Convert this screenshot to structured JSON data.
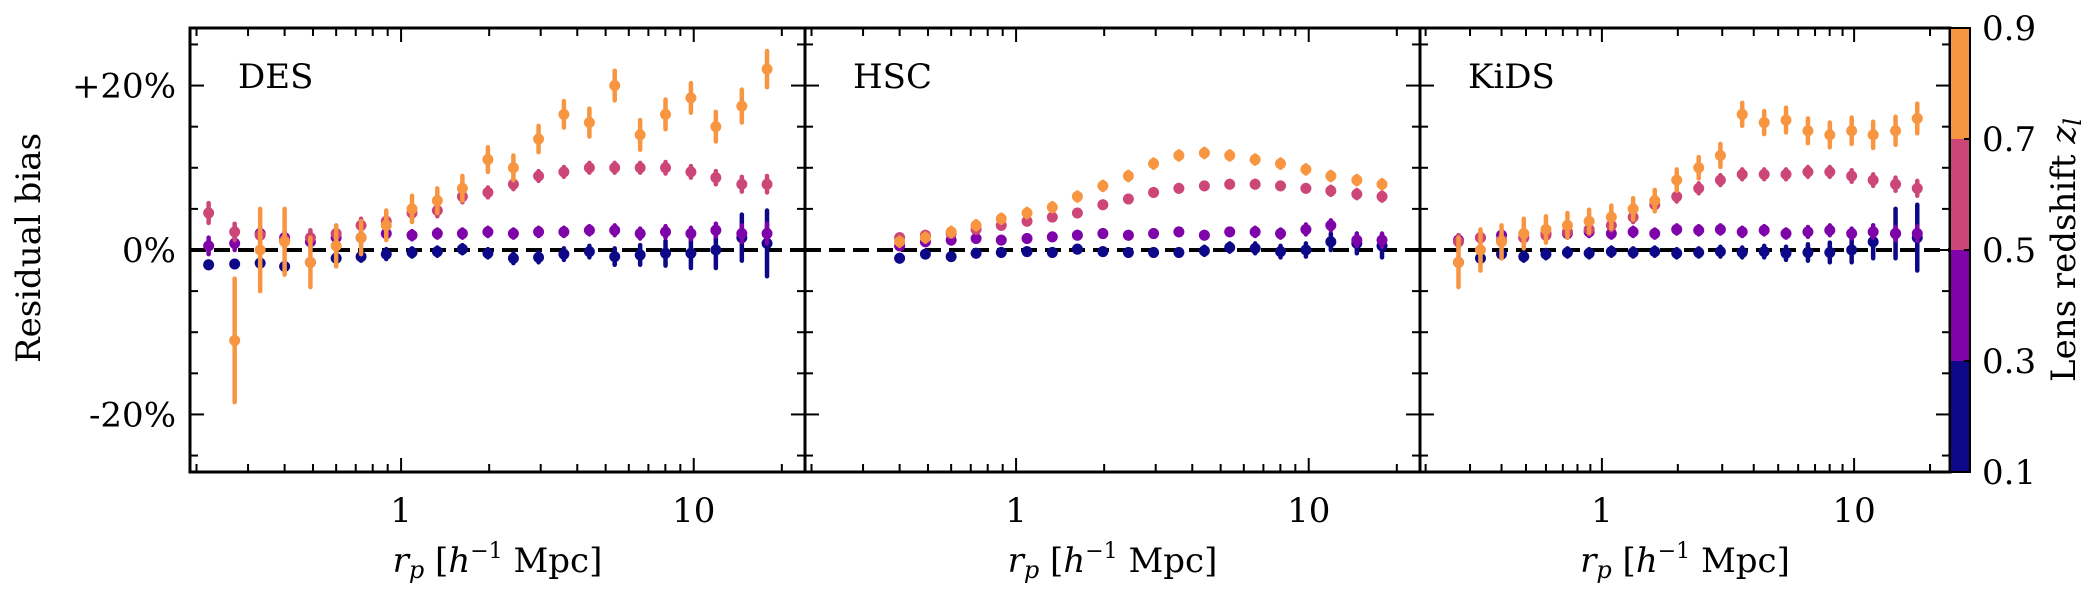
{
  "chart_data": {
    "type": "scatter",
    "ylabel": "Residual bias",
    "xlabel": "r_p [h^{-1} Mpc]",
    "x_scale": "log",
    "xlim": [
      0.19,
      24
    ],
    "ylim": [
      -0.27,
      0.27
    ],
    "x_ticks": [
      {
        "value": 1,
        "label": "1"
      },
      {
        "value": 10,
        "label": "10"
      }
    ],
    "y_ticks": [
      {
        "value": 0.2,
        "label": "+20%"
      },
      {
        "value": 0,
        "label": "0%"
      },
      {
        "value": -0.2,
        "label": "-20%"
      }
    ],
    "reference_line": 0,
    "colorbar": {
      "label": "Lens redshift z_l",
      "label_text": "Lens redshift ",
      "label_symbol": "z",
      "label_subscript": "l",
      "ticks": [
        "0.1",
        "0.3",
        "0.5",
        "0.7",
        "0.9"
      ],
      "bins": [
        {
          "range": [
            0.1,
            0.3
          ],
          "color": "#0d0887"
        },
        {
          "range": [
            0.3,
            0.5
          ],
          "color": "#7e03a8"
        },
        {
          "range": [
            0.5,
            0.7
          ],
          "color": "#cc4778"
        },
        {
          "range": [
            0.7,
            0.9
          ],
          "color": "#f89540"
        }
      ]
    },
    "x": [
      0.22,
      0.27,
      0.33,
      0.4,
      0.49,
      0.6,
      0.73,
      0.89,
      1.09,
      1.33,
      1.62,
      1.98,
      2.42,
      2.95,
      3.6,
      4.4,
      5.37,
      6.56,
      8.01,
      9.78,
      11.9,
      14.6,
      17.8
    ],
    "panels": [
      {
        "title": "DES",
        "series": [
          {
            "bin": 0,
            "x_index": [
              0,
              1,
              2,
              3,
              4,
              5,
              6,
              7,
              8,
              9,
              10,
              11,
              12,
              13,
              14,
              15,
              16,
              17,
              18,
              19,
              20,
              21,
              22
            ],
            "y": [
              -0.018,
              -0.017,
              -0.016,
              -0.02,
              -0.015,
              -0.01,
              -0.008,
              -0.005,
              -0.003,
              -0.002,
              0.001,
              -0.004,
              -0.01,
              -0.009,
              -0.005,
              -0.002,
              -0.008,
              -0.006,
              -0.004,
              -0.004,
              0.0,
              0.015,
              0.008
            ],
            "err": [
              0.004,
              0.004,
              0.004,
              0.005,
              0.005,
              0.005,
              0.005,
              0.006,
              0.005,
              0.005,
              0.005,
              0.005,
              0.006,
              0.006,
              0.007,
              0.007,
              0.01,
              0.012,
              0.015,
              0.018,
              0.022,
              0.028,
              0.04
            ]
          },
          {
            "bin": 1,
            "x_index": [
              0,
              1,
              2,
              3,
              4,
              5,
              6,
              7,
              8,
              9,
              10,
              11,
              12,
              13,
              14,
              15,
              16,
              17,
              18,
              19,
              20,
              21,
              22
            ],
            "y": [
              0.005,
              0.008,
              0.02,
              0.015,
              0.01,
              0.015,
              0.015,
              0.02,
              0.018,
              0.02,
              0.02,
              0.022,
              0.02,
              0.022,
              0.022,
              0.024,
              0.024,
              0.02,
              0.022,
              0.02,
              0.024,
              0.02,
              0.02
            ],
            "err": [
              0.01,
              0.008,
              0.008,
              0.008,
              0.007,
              0.006,
              0.006,
              0.006,
              0.005,
              0.005,
              0.005,
              0.005,
              0.005,
              0.005,
              0.005,
              0.005,
              0.006,
              0.006,
              0.007,
              0.007,
              0.008,
              0.01,
              0.012
            ]
          },
          {
            "bin": 2,
            "x_index": [
              0,
              1,
              2,
              3,
              4,
              5,
              6,
              7,
              8,
              9,
              10,
              11,
              12,
              13,
              14,
              15,
              16,
              17,
              18,
              19,
              20,
              21,
              22
            ],
            "y": [
              0.045,
              0.022,
              0.018,
              0.012,
              0.015,
              0.02,
              0.03,
              0.035,
              0.045,
              0.048,
              0.065,
              0.07,
              0.08,
              0.09,
              0.095,
              0.1,
              0.1,
              0.1,
              0.1,
              0.095,
              0.088,
              0.08,
              0.08
            ],
            "err": [
              0.012,
              0.01,
              0.01,
              0.009,
              0.009,
              0.008,
              0.008,
              0.008,
              0.007,
              0.007,
              0.007,
              0.006,
              0.006,
              0.006,
              0.006,
              0.006,
              0.006,
              0.006,
              0.007,
              0.007,
              0.008,
              0.009,
              0.01
            ]
          },
          {
            "bin": 3,
            "x_index": [
              1,
              2,
              3,
              4,
              5,
              6,
              7,
              8,
              9,
              10,
              11,
              12,
              13,
              14,
              15,
              16,
              17,
              18,
              19,
              20,
              21,
              22
            ],
            "y": [
              -0.11,
              0.0,
              0.01,
              -0.015,
              0.005,
              0.015,
              0.03,
              0.05,
              0.06,
              0.075,
              0.11,
              0.1,
              0.135,
              0.165,
              0.155,
              0.2,
              0.14,
              0.165,
              0.185,
              0.15,
              0.175,
              0.22
            ],
            "err": [
              0.075,
              0.05,
              0.04,
              0.03,
              0.025,
              0.02,
              0.018,
              0.016,
              0.015,
              0.015,
              0.015,
              0.015,
              0.016,
              0.016,
              0.017,
              0.018,
              0.018,
              0.018,
              0.018,
              0.018,
              0.02,
              0.022
            ]
          }
        ]
      },
      {
        "title": "HSC",
        "series": [
          {
            "bin": 0,
            "x_index": [
              3,
              4,
              5,
              6,
              7,
              8,
              9,
              10,
              11,
              12,
              13,
              14,
              15,
              16,
              17,
              18,
              19,
              20,
              21,
              22
            ],
            "y": [
              -0.01,
              -0.005,
              -0.008,
              -0.004,
              -0.003,
              -0.002,
              -0.003,
              0.001,
              -0.002,
              -0.003,
              -0.003,
              -0.003,
              -0.001,
              0.003,
              0.002,
              -0.002,
              0.0,
              0.01,
              0.008,
              0.005
            ],
            "err": [
              0.004,
              0.004,
              0.004,
              0.004,
              0.004,
              0.004,
              0.004,
              0.004,
              0.004,
              0.004,
              0.004,
              0.004,
              0.005,
              0.005,
              0.006,
              0.007,
              0.008,
              0.01,
              0.012,
              0.014
            ]
          },
          {
            "bin": 1,
            "x_index": [
              3,
              4,
              5,
              6,
              7,
              8,
              9,
              10,
              11,
              12,
              13,
              14,
              15,
              16,
              17,
              18,
              19,
              20,
              21,
              22
            ],
            "y": [
              0.005,
              0.01,
              0.012,
              0.014,
              0.012,
              0.014,
              0.016,
              0.018,
              0.02,
              0.018,
              0.02,
              0.022,
              0.018,
              0.022,
              0.022,
              0.02,
              0.025,
              0.03,
              0.012,
              0.012
            ],
            "err": [
              0.004,
              0.004,
              0.004,
              0.004,
              0.004,
              0.004,
              0.004,
              0.004,
              0.004,
              0.004,
              0.004,
              0.004,
              0.004,
              0.004,
              0.005,
              0.005,
              0.006,
              0.006,
              0.007,
              0.008
            ]
          },
          {
            "bin": 2,
            "x_index": [
              3,
              4,
              5,
              6,
              7,
              8,
              9,
              10,
              11,
              12,
              13,
              14,
              15,
              16,
              17,
              18,
              19,
              20,
              21,
              22
            ],
            "y": [
              0.015,
              0.018,
              0.02,
              0.025,
              0.03,
              0.035,
              0.04,
              0.045,
              0.055,
              0.062,
              0.07,
              0.075,
              0.078,
              0.08,
              0.08,
              0.078,
              0.075,
              0.072,
              0.068,
              0.065
            ],
            "err": [
              0.004,
              0.004,
              0.004,
              0.004,
              0.004,
              0.004,
              0.004,
              0.004,
              0.004,
              0.004,
              0.004,
              0.004,
              0.004,
              0.004,
              0.004,
              0.004,
              0.004,
              0.005,
              0.005,
              0.005
            ]
          },
          {
            "bin": 3,
            "x_index": [
              3,
              4,
              5,
              6,
              7,
              8,
              9,
              10,
              11,
              12,
              13,
              14,
              15,
              16,
              17,
              18,
              19,
              20,
              21,
              22
            ],
            "y": [
              0.01,
              0.015,
              0.022,
              0.03,
              0.038,
              0.045,
              0.052,
              0.065,
              0.078,
              0.09,
              0.105,
              0.115,
              0.118,
              0.115,
              0.11,
              0.105,
              0.098,
              0.09,
              0.085,
              0.08
            ],
            "err": [
              0.005,
              0.005,
              0.005,
              0.005,
              0.005,
              0.005,
              0.005,
              0.005,
              0.005,
              0.005,
              0.005,
              0.005,
              0.005,
              0.005,
              0.005,
              0.005,
              0.005,
              0.005,
              0.005,
              0.005
            ]
          }
        ]
      },
      {
        "title": "KiDS",
        "series": [
          {
            "bin": 0,
            "x_index": [
              1,
              2,
              3,
              4,
              5,
              6,
              7,
              8,
              9,
              10,
              11,
              12,
              13,
              14,
              15,
              16,
              17,
              18,
              19,
              20,
              21,
              22
            ],
            "y": [
              -0.015,
              -0.01,
              -0.005,
              -0.008,
              -0.005,
              -0.003,
              -0.004,
              -0.002,
              -0.003,
              -0.002,
              -0.004,
              -0.003,
              -0.002,
              -0.003,
              -0.002,
              -0.004,
              -0.003,
              -0.003,
              0.0,
              0.01,
              0.02,
              0.015
            ],
            "err": [
              0.005,
              0.005,
              0.005,
              0.005,
              0.005,
              0.005,
              0.005,
              0.005,
              0.005,
              0.005,
              0.005,
              0.005,
              0.006,
              0.006,
              0.007,
              0.008,
              0.01,
              0.012,
              0.015,
              0.02,
              0.03,
              0.04
            ]
          },
          {
            "bin": 1,
            "x_index": [
              1,
              2,
              3,
              4,
              5,
              6,
              7,
              8,
              9,
              10,
              11,
              12,
              13,
              14,
              15,
              16,
              17,
              18,
              19,
              20,
              21,
              22
            ],
            "y": [
              0.012,
              0.015,
              0.018,
              0.015,
              0.02,
              0.02,
              0.022,
              0.02,
              0.022,
              0.02,
              0.025,
              0.024,
              0.025,
              0.022,
              0.024,
              0.02,
              0.022,
              0.024,
              0.02,
              0.022,
              0.02,
              0.02
            ],
            "err": [
              0.006,
              0.006,
              0.006,
              0.005,
              0.005,
              0.005,
              0.005,
              0.005,
              0.005,
              0.005,
              0.005,
              0.005,
              0.005,
              0.005,
              0.005,
              0.005,
              0.006,
              0.006,
              0.006,
              0.007,
              0.008,
              0.009
            ]
          },
          {
            "bin": 2,
            "x_index": [
              1,
              2,
              3,
              4,
              5,
              6,
              7,
              8,
              9,
              10,
              11,
              12,
              13,
              14,
              15,
              16,
              17,
              18,
              19,
              20,
              21,
              22
            ],
            "y": [
              0.01,
              0.015,
              0.012,
              0.015,
              0.018,
              0.022,
              0.025,
              0.03,
              0.04,
              0.055,
              0.065,
              0.075,
              0.085,
              0.092,
              0.092,
              0.092,
              0.095,
              0.095,
              0.09,
              0.085,
              0.08,
              0.075
            ],
            "err": [
              0.008,
              0.007,
              0.007,
              0.006,
              0.006,
              0.006,
              0.006,
              0.006,
              0.006,
              0.006,
              0.006,
              0.006,
              0.006,
              0.006,
              0.006,
              0.006,
              0.006,
              0.006,
              0.007,
              0.007,
              0.008,
              0.009
            ]
          },
          {
            "bin": 3,
            "x_index": [
              1,
              2,
              3,
              4,
              5,
              6,
              7,
              8,
              9,
              10,
              11,
              12,
              13,
              14,
              15,
              16,
              17,
              18,
              19,
              20,
              21,
              22
            ],
            "y": [
              -0.015,
              0.0,
              0.01,
              0.02,
              0.025,
              0.03,
              0.035,
              0.04,
              0.05,
              0.06,
              0.085,
              0.1,
              0.115,
              0.165,
              0.155,
              0.158,
              0.145,
              0.14,
              0.145,
              0.14,
              0.145,
              0.16
            ],
            "err": [
              0.03,
              0.025,
              0.02,
              0.018,
              0.016,
              0.015,
              0.014,
              0.014,
              0.013,
              0.013,
              0.013,
              0.013,
              0.014,
              0.014,
              0.014,
              0.015,
              0.015,
              0.015,
              0.016,
              0.016,
              0.017,
              0.018
            ]
          }
        ]
      }
    ]
  }
}
